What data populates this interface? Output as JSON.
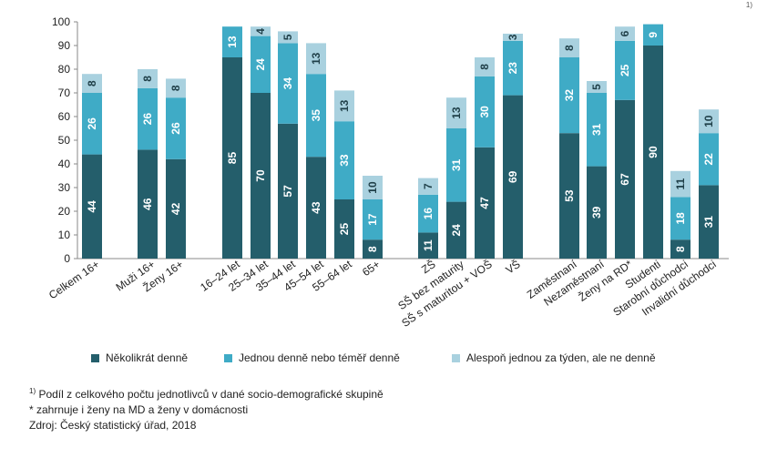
{
  "chart_data": {
    "type": "bar",
    "stacked": true,
    "ylim": [
      0,
      100
    ],
    "yticks": [
      0,
      10,
      20,
      30,
      40,
      50,
      60,
      70,
      80,
      90,
      100
    ],
    "grid": false,
    "legend_position": "bottom",
    "categories": [
      "Celkem 16+",
      "Muži 16+",
      "Ženy 16+",
      "16–24 let",
      "25–34 let",
      "35–44 let",
      "45–54 let",
      "55–64 let",
      "65+",
      "ZŠ",
      "SŠ bez maturity",
      "SŠ s maturitou + VOŠ",
      "VŠ",
      "Zaměstnaní",
      "Nezaměstnaní",
      "Ženy na RD*",
      "Studenti",
      "Starobní důchodci",
      "Invalidní důchodci"
    ],
    "series": [
      {
        "name": "Několikrát denně",
        "color": "#245e6b",
        "values": [
          44,
          46,
          42,
          85,
          70,
          57,
          43,
          25,
          8,
          11,
          24,
          47,
          69,
          53,
          39,
          67,
          90,
          8,
          31
        ]
      },
      {
        "name": "Jednou denně nebo téměř denně",
        "color": "#3fabc6",
        "values": [
          26,
          26,
          26,
          13,
          24,
          34,
          35,
          33,
          17,
          16,
          31,
          30,
          23,
          32,
          31,
          25,
          9,
          18,
          22
        ]
      },
      {
        "name": "Alespoň jednou za týden, ale ne denně",
        "color": "#a9d1df",
        "values": [
          8,
          8,
          8,
          null,
          4,
          5,
          13,
          13,
          10,
          7,
          13,
          8,
          3,
          8,
          5,
          6,
          null,
          11,
          10
        ]
      }
    ],
    "bar_labels": [
      [
        "44",
        "26",
        "8"
      ],
      [
        "46",
        "26",
        "8"
      ],
      [
        "42",
        "26",
        "8"
      ],
      [
        "85",
        "13",
        ""
      ],
      [
        "70",
        "24",
        "4"
      ],
      [
        "57",
        "34",
        "5"
      ],
      [
        "43",
        "35",
        "13"
      ],
      [
        "25",
        "33",
        "13"
      ],
      [
        "8",
        "17",
        "10"
      ],
      [
        "11",
        "16",
        "7"
      ],
      [
        "24",
        "31",
        "13"
      ],
      [
        "47",
        "30",
        "8"
      ],
      [
        "69",
        "23",
        "3"
      ],
      [
        "53",
        "32",
        "8"
      ],
      [
        "39",
        "31",
        "5"
      ],
      [
        "67",
        "25",
        "6"
      ],
      [
        "90",
        "9",
        ""
      ],
      [
        "8",
        "18",
        "11"
      ],
      [
        "31",
        "22",
        "10"
      ]
    ]
  },
  "footnotes": {
    "note1_mark": "1)",
    "note1_text": " Podíl z celkového počtu jednotlivců v dané socio-demografické skupině",
    "note2": "* zahrnuje i ženy na MD a ženy v domácnosti",
    "source": "Zdroj: Český statistický úřad, 2018"
  },
  "corner_mark": "1)"
}
